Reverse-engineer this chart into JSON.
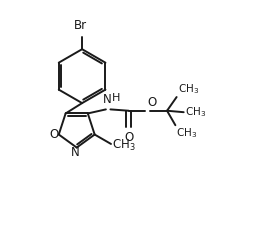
{
  "bg_color": "#ffffff",
  "line_color": "#1a1a1a",
  "line_width": 1.4,
  "font_size": 8.5,
  "figsize": [
    2.72,
    2.52
  ],
  "dpi": 100,
  "xlim": [
    0,
    10
  ],
  "ylim": [
    0,
    9.3
  ]
}
